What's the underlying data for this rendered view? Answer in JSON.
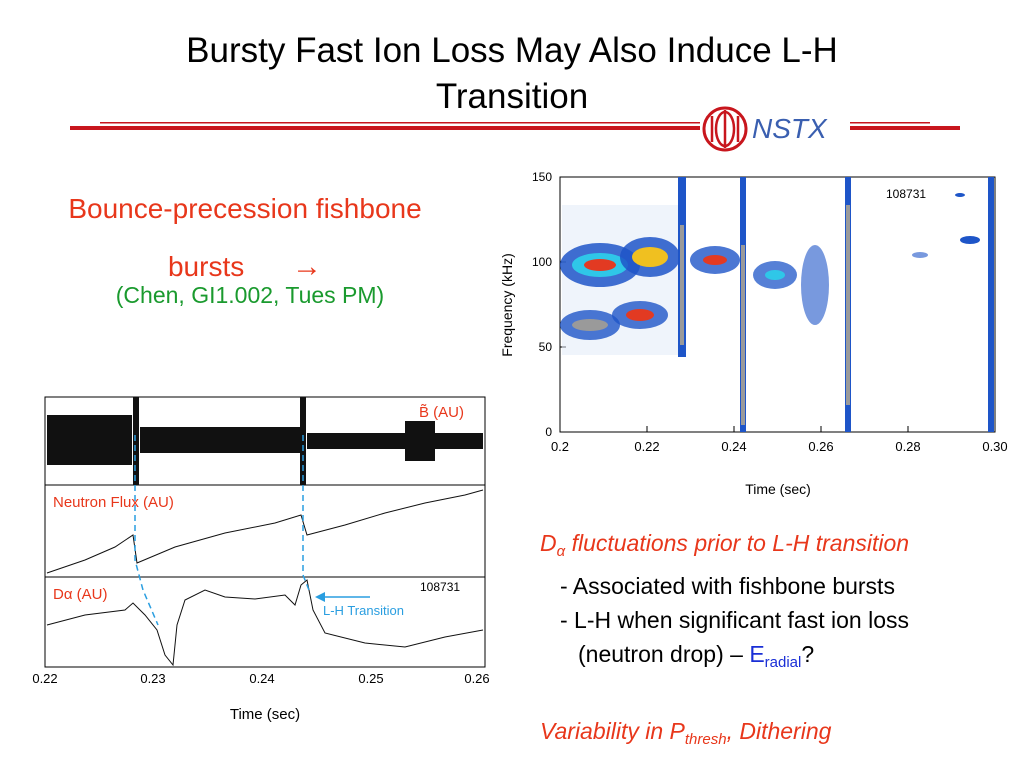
{
  "slide": {
    "title_line1": "Bursty Fast Ion Loss May Also Induce L-H",
    "title_line2": "Transition",
    "logo_text": "NSTX",
    "colors": {
      "accent_red": "#c8161d",
      "orange_red": "#e8371b",
      "green": "#1a9a2e",
      "blue": "#1a2fd6",
      "cyan": "#2a9ee0"
    }
  },
  "left": {
    "heading_line1": "Bounce-precession fishbone",
    "heading_line2": "bursts",
    "arrow": "→",
    "reference": "(Chen, GI1.002, Tues PM)"
  },
  "spectrogram": {
    "shot": "108731",
    "ylabel": "Frequency (kHz)",
    "xlabel": "Time (sec)",
    "yticks": [
      "0",
      "50",
      "100",
      "150"
    ],
    "xticks": [
      "0.2",
      "0.22",
      "0.24",
      "0.26",
      "0.28",
      "0.30"
    ]
  },
  "traces": {
    "shot": "108731",
    "panel1_label": "B̃ (AU)",
    "panel2_label": "Neutron Flux (AU)",
    "panel3_label": "Dα (AU)",
    "annotation": "L-H Transition",
    "xlabel": "Time (sec)",
    "xticks": [
      "0.22",
      "0.23",
      "0.24",
      "0.25",
      "0.26"
    ]
  },
  "notes": {
    "line1_a": "D",
    "line1_sub": "α",
    "line1_b": " fluctuations prior to L-H transition",
    "line2": "- Associated with fishbone bursts",
    "line3": "- L-H when significant fast ion loss",
    "line4_a": "(neutron drop) – ",
    "line4_e": "E",
    "line4_sub": "radial",
    "line4_q": "?",
    "line5_a": "Variability in P",
    "line5_sub": "thresh",
    "line5_b": ", Dithering"
  }
}
